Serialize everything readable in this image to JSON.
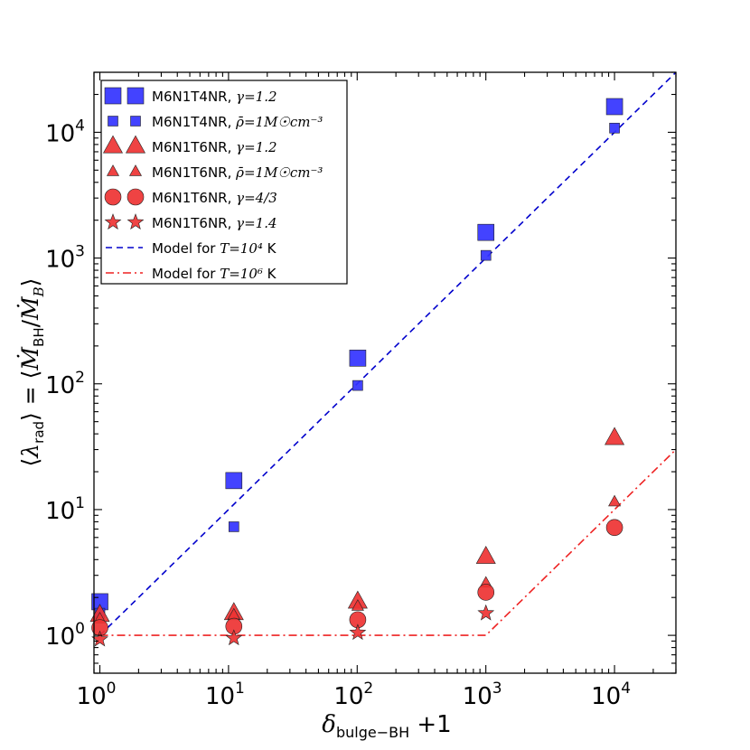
{
  "chart_data": {
    "type": "scatter",
    "xscale": "log",
    "yscale": "log",
    "xlim": [
      0.9,
      30000
    ],
    "ylim": [
      0.5,
      30000
    ],
    "xlabel": "δ_bulge−BH + 1",
    "ylabel": "⟨λ_rad⟩ = ⟨Ṁ_BH / Ṁ_B⟩",
    "xticks": [
      {
        "value": 1,
        "base": "10",
        "exp": "0"
      },
      {
        "value": 10,
        "base": "10",
        "exp": "1"
      },
      {
        "value": 100,
        "base": "10",
        "exp": "2"
      },
      {
        "value": 1000,
        "base": "10",
        "exp": "3"
      },
      {
        "value": 10000,
        "base": "10",
        "exp": "4"
      }
    ],
    "yticks": [
      {
        "value": 1,
        "base": "10",
        "exp": "0"
      },
      {
        "value": 10,
        "base": "10",
        "exp": "1"
      },
      {
        "value": 100,
        "base": "10",
        "exp": "2"
      },
      {
        "value": 1000,
        "base": "10",
        "exp": "3"
      },
      {
        "value": 10000,
        "base": "10",
        "exp": "4"
      }
    ],
    "series": [
      {
        "key": "sq-large",
        "name": "M6N1T4NR",
        "param": "γ=1.2",
        "marker": "square",
        "marker_size": "large",
        "color": "#3333ff",
        "points": [
          [
            1,
            1.85
          ],
          [
            11,
            17
          ],
          [
            101,
            160
          ],
          [
            1001,
            1600
          ],
          [
            10001,
            16000
          ]
        ]
      },
      {
        "key": "sq-small",
        "name": "M6N1T4NR",
        "param": "ρ̄=1M☉cm⁻³",
        "marker": "square",
        "marker_size": "small",
        "color": "#3333ff",
        "points": [
          [
            1,
            1.5
          ],
          [
            11,
            7.3
          ],
          [
            101,
            97
          ],
          [
            1001,
            1050
          ],
          [
            10001,
            10800
          ]
        ]
      },
      {
        "key": "tri-large",
        "name": "M6N1T6NR",
        "param": "γ=1.2",
        "marker": "triangle",
        "marker_size": "large",
        "color": "#ee3333",
        "points": [
          [
            1,
            1.45
          ],
          [
            11,
            1.5
          ],
          [
            101,
            1.85
          ],
          [
            1001,
            4.2
          ],
          [
            10001,
            37
          ]
        ]
      },
      {
        "key": "tri-small",
        "name": "M6N1T6NR",
        "param": "ρ̄=1M☉cm⁻³",
        "marker": "triangle",
        "marker_size": "small",
        "color": "#ee3333",
        "points": [
          [
            1,
            1.35
          ],
          [
            11,
            1.45
          ],
          [
            101,
            1.7
          ],
          [
            1001,
            2.6
          ],
          [
            10001,
            11.5
          ]
        ]
      },
      {
        "key": "circle",
        "name": "M6N1T6NR",
        "param": "γ=4/3",
        "marker": "circle",
        "marker_size": "large",
        "color": "#ee3333",
        "points": [
          [
            1,
            1.15
          ],
          [
            11,
            1.18
          ],
          [
            101,
            1.33
          ],
          [
            1001,
            2.2
          ],
          [
            10001,
            7.2
          ]
        ]
      },
      {
        "key": "star",
        "name": "M6N1T6NR",
        "param": "γ=1.4",
        "marker": "star",
        "marker_size": "large",
        "color": "#ee3333",
        "points": [
          [
            1,
            0.93
          ],
          [
            11,
            0.95
          ],
          [
            101,
            1.05
          ],
          [
            1001,
            1.5
          ],
          [
            10001,
            null
          ]
        ]
      }
    ],
    "model_lines": [
      {
        "key": "model-t4",
        "label": "Model for",
        "param": "T=10⁴",
        "unit": "K",
        "style": "dashed",
        "color": "#0000cc",
        "points": [
          [
            1,
            1
          ],
          [
            30000,
            30000
          ]
        ]
      },
      {
        "key": "model-t6",
        "label": "Model for",
        "param": "T=10⁶",
        "unit": "K",
        "style": "dashdot",
        "color": "#ee2222",
        "points": [
          [
            1,
            1
          ],
          [
            1000,
            1
          ],
          [
            30000,
            30
          ]
        ]
      }
    ],
    "legend_position": "top-left"
  }
}
